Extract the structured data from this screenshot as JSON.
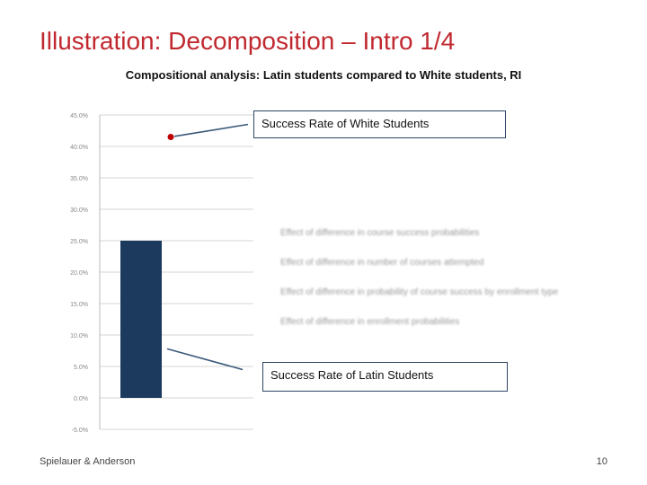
{
  "slide": {
    "title": "Illustration: Decomposition – Intro 1/4",
    "footer_left": "Spielauer & Anderson",
    "page_number": "10"
  },
  "chart_data": {
    "type": "bar",
    "title": "Compositional analysis: Latin students compared to White students, RI",
    "yticks": [
      "45.0%",
      "40.0%",
      "35.0%",
      "30.0%",
      "25.0%",
      "20.0%",
      "15.0%",
      "10.0%",
      "5.0%",
      "0.0%",
      "-5.0%"
    ],
    "ylim": [
      -5,
      45
    ],
    "bars": [
      {
        "value": 25.0,
        "color": "#1b3a5e"
      }
    ],
    "point": {
      "value": 41.5,
      "color": "#c00000"
    },
    "line_upper": [
      41.6,
      43.5
    ],
    "line_lower": [
      7.8,
      4.5
    ],
    "grid": true,
    "legend_entries": [
      "Effect of difference in course success probabilities",
      "Effect of difference in number of courses attempted",
      "Effect of difference in probability of course success by enrollment type",
      "Effect of difference in enrollment probabilities"
    ],
    "callouts": {
      "upper": "Success Rate of White Students",
      "lower": "Success Rate of Latin Students"
    }
  }
}
